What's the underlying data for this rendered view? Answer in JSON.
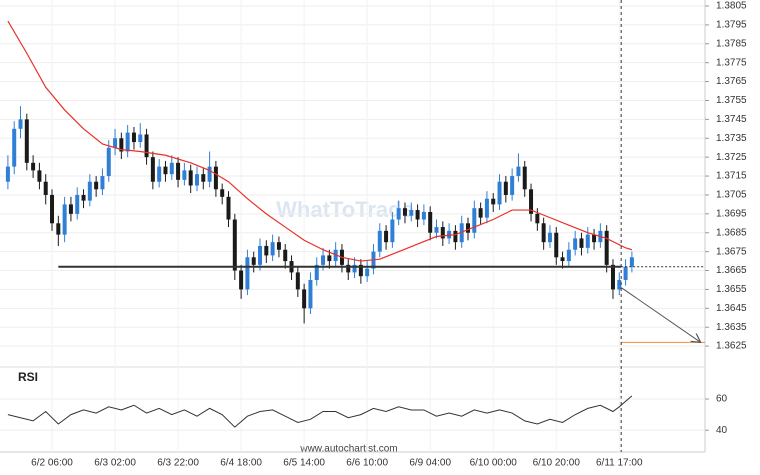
{
  "chart_data": [
    {
      "type": "candlestick",
      "watermark": "WhatToTrade",
      "categories": [
        null,
        null,
        null,
        null,
        null,
        null,
        null,
        "6/2 06:00",
        null,
        null,
        null,
        null,
        null,
        null,
        null,
        null,
        null,
        "6/3 02:00",
        null,
        null,
        null,
        null,
        null,
        null,
        null,
        null,
        null,
        "6/3 22:00",
        null,
        null,
        null,
        null,
        null,
        null,
        null,
        null,
        null,
        "6/4 18:00",
        null,
        null,
        null,
        null,
        null,
        null,
        null,
        null,
        null,
        "6/5 14:00",
        null,
        null,
        null,
        null,
        null,
        null,
        null,
        null,
        null,
        "6/6 10:00",
        null,
        null,
        null,
        null,
        null,
        null,
        null,
        null,
        null,
        "6/9 04:00",
        null,
        null,
        null,
        null,
        null,
        null,
        null,
        null,
        null,
        "6/10 00:00",
        null,
        null,
        null,
        null,
        null,
        null,
        null,
        null,
        null,
        "6/10 20:00",
        null,
        null,
        null,
        null,
        null,
        null,
        null,
        null,
        null,
        "6/11 17:00",
        null,
        null
      ],
      "candles": [
        [
          1.3712,
          1.3726,
          1.3708,
          1.372
        ],
        [
          1.372,
          1.3744,
          1.3716,
          1.374
        ],
        [
          1.374,
          1.3752,
          1.3735,
          1.3745
        ],
        [
          1.3745,
          1.3748,
          1.3718,
          1.3722
        ],
        [
          1.3722,
          1.3726,
          1.3714,
          1.3718
        ],
        [
          1.3718,
          1.3722,
          1.3708,
          1.3712
        ],
        [
          1.3712,
          1.3716,
          1.37,
          1.3705
        ],
        [
          1.3705,
          1.3708,
          1.3686,
          1.369
        ],
        [
          1.369,
          1.3694,
          1.3678,
          1.3684
        ],
        [
          1.3684,
          1.3704,
          1.368,
          1.37
        ],
        [
          1.37,
          1.3704,
          1.3691,
          1.3695
        ],
        [
          1.3695,
          1.3709,
          1.3692,
          1.3705
        ],
        [
          1.3705,
          1.3708,
          1.3698,
          1.3702
        ],
        [
          1.3702,
          1.3716,
          1.3699,
          1.3712
        ],
        [
          1.3712,
          1.3715,
          1.3704,
          1.3708
        ],
        [
          1.3708,
          1.3719,
          1.3705,
          1.3715
        ],
        [
          1.3715,
          1.3734,
          1.3712,
          1.373
        ],
        [
          1.373,
          1.374,
          1.3726,
          1.3735
        ],
        [
          1.3735,
          1.3738,
          1.3724,
          1.3728
        ],
        [
          1.3728,
          1.3742,
          1.3725,
          1.3738
        ],
        [
          1.3738,
          1.3741,
          1.3729,
          1.3733
        ],
        [
          1.3733,
          1.3743,
          1.373,
          1.3737
        ],
        [
          1.3737,
          1.374,
          1.3721,
          1.3725
        ],
        [
          1.3725,
          1.3728,
          1.3708,
          1.3712
        ],
        [
          1.3712,
          1.3724,
          1.3709,
          1.372
        ],
        [
          1.372,
          1.3723,
          1.3712,
          1.3716
        ],
        [
          1.3716,
          1.3726,
          1.3713,
          1.3722
        ],
        [
          1.3722,
          1.3725,
          1.3709,
          1.3713
        ],
        [
          1.3713,
          1.3722,
          1.371,
          1.3718
        ],
        [
          1.3718,
          1.3721,
          1.3706,
          1.371
        ],
        [
          1.371,
          1.372,
          1.3707,
          1.3716
        ],
        [
          1.3716,
          1.3719,
          1.3708,
          1.3712
        ],
        [
          1.3712,
          1.3728,
          1.3709,
          1.372
        ],
        [
          1.372,
          1.3723,
          1.3704,
          1.3708
        ],
        [
          1.3708,
          1.3711,
          1.37,
          1.3704
        ],
        [
          1.3704,
          1.3707,
          1.3688,
          1.3692
        ],
        [
          1.3692,
          1.3695,
          1.366,
          1.3665
        ],
        [
          1.3665,
          1.3668,
          1.365,
          1.3655
        ],
        [
          1.3655,
          1.3676,
          1.3652,
          1.3672
        ],
        [
          1.3672,
          1.3675,
          1.3664,
          1.3668
        ],
        [
          1.3668,
          1.3682,
          1.3665,
          1.3678
        ],
        [
          1.3678,
          1.3681,
          1.3669,
          1.3673
        ],
        [
          1.3673,
          1.3684,
          1.367,
          1.368
        ],
        [
          1.368,
          1.3683,
          1.3672,
          1.3676
        ],
        [
          1.3676,
          1.3679,
          1.3666,
          1.367
        ],
        [
          1.367,
          1.3673,
          1.366,
          1.3664
        ],
        [
          1.3664,
          1.3667,
          1.3651,
          1.3655
        ],
        [
          1.3655,
          1.3658,
          1.3637,
          1.3645
        ],
        [
          1.3645,
          1.3664,
          1.3642,
          1.366
        ],
        [
          1.366,
          1.3672,
          1.3657,
          1.3668
        ],
        [
          1.3668,
          1.3677,
          1.3665,
          1.3673
        ],
        [
          1.3673,
          1.3676,
          1.3666,
          1.367
        ],
        [
          1.367,
          1.368,
          1.3667,
          1.3676
        ],
        [
          1.3676,
          1.3679,
          1.3664,
          1.3668
        ],
        [
          1.3668,
          1.3671,
          1.366,
          1.3664
        ],
        [
          1.3664,
          1.3672,
          1.3661,
          1.3668
        ],
        [
          1.3668,
          1.3671,
          1.3658,
          1.3662
        ],
        [
          1.3662,
          1.367,
          1.3659,
          1.3666
        ],
        [
          1.3666,
          1.3679,
          1.3663,
          1.3675
        ],
        [
          1.3675,
          1.369,
          1.3672,
          1.3686
        ],
        [
          1.3686,
          1.3689,
          1.3676,
          1.368
        ],
        [
          1.368,
          1.3696,
          1.3677,
          1.3692
        ],
        [
          1.3692,
          1.3702,
          1.3689,
          1.3698
        ],
        [
          1.3698,
          1.3701,
          1.369,
          1.3694
        ],
        [
          1.3694,
          1.3701,
          1.3691,
          1.3697
        ],
        [
          1.3697,
          1.37,
          1.3688,
          1.3692
        ],
        [
          1.3692,
          1.37,
          1.3689,
          1.3696
        ],
        [
          1.3696,
          1.3699,
          1.3681,
          1.3685
        ],
        [
          1.3685,
          1.3692,
          1.3682,
          1.3688
        ],
        [
          1.3688,
          1.3691,
          1.3678,
          1.3682
        ],
        [
          1.3682,
          1.369,
          1.3679,
          1.3686
        ],
        [
          1.3686,
          1.3689,
          1.3676,
          1.368
        ],
        [
          1.368,
          1.3694,
          1.3677,
          1.369
        ],
        [
          1.369,
          1.3693,
          1.3681,
          1.3685
        ],
        [
          1.3685,
          1.3702,
          1.3682,
          1.3698
        ],
        [
          1.3698,
          1.3701,
          1.3689,
          1.3693
        ],
        [
          1.3693,
          1.3707,
          1.369,
          1.3703
        ],
        [
          1.3703,
          1.3706,
          1.3696,
          1.37
        ],
        [
          1.37,
          1.3716,
          1.3697,
          1.3712
        ],
        [
          1.3712,
          1.3715,
          1.3701,
          1.3705
        ],
        [
          1.3705,
          1.3719,
          1.3702,
          1.3715
        ],
        [
          1.3715,
          1.3727,
          1.3712,
          1.372
        ],
        [
          1.372,
          1.3723,
          1.3704,
          1.3708
        ],
        [
          1.3708,
          1.3711,
          1.3691,
          1.3695
        ],
        [
          1.3695,
          1.3698,
          1.3686,
          1.369
        ],
        [
          1.369,
          1.3693,
          1.3676,
          1.368
        ],
        [
          1.368,
          1.3689,
          1.3677,
          1.3685
        ],
        [
          1.3685,
          1.3688,
          1.3668,
          1.3672
        ],
        [
          1.3672,
          1.3675,
          1.3666,
          1.367
        ],
        [
          1.367,
          1.368,
          1.3667,
          1.3676
        ],
        [
          1.3676,
          1.3686,
          1.3673,
          1.3682
        ],
        [
          1.3682,
          1.3685,
          1.3673,
          1.3677
        ],
        [
          1.3677,
          1.3688,
          1.3674,
          1.3684
        ],
        [
          1.3684,
          1.3687,
          1.3676,
          1.368
        ],
        [
          1.368,
          1.369,
          1.3677,
          1.3686
        ],
        [
          1.3686,
          1.3689,
          1.3664,
          1.3668
        ],
        [
          1.3668,
          1.3671,
          1.365,
          1.3655
        ],
        [
          1.3655,
          1.3664,
          1.3652,
          1.366
        ],
        [
          1.366,
          1.3671,
          1.3657,
          1.3667
        ],
        [
          1.3667,
          1.3675,
          1.3664,
          1.3672
        ]
      ],
      "up_color": "#2f7fd6",
      "down_color": "#1a1a1a",
      "xlim": [
        -0.5,
        110.6
      ],
      "ylim": [
        1.3615,
        1.3805
      ],
      "yticks": [
        1.3625,
        1.3635,
        1.3645,
        1.3655,
        1.3665,
        1.3675,
        1.3685,
        1.3695,
        1.3705,
        1.3715,
        1.3725,
        1.3735,
        1.3745,
        1.3755,
        1.3765,
        1.3775,
        1.3785,
        1.3795,
        1.3805
      ],
      "grid": true,
      "moving_average": {
        "color": "#e8302a",
        "x": [
          0,
          3,
          6,
          9,
          12,
          15,
          18,
          21,
          25,
          29,
          32,
          35,
          38,
          41,
          44,
          47,
          50,
          53,
          56,
          59,
          62,
          65,
          68,
          71,
          74,
          77,
          80,
          83,
          86,
          89,
          92,
          95,
          98,
          99
        ],
        "values": [
          1.3797,
          1.378,
          1.3762,
          1.375,
          1.374,
          1.3732,
          1.3729,
          1.3728,
          1.3726,
          1.3722,
          1.3718,
          1.3712,
          1.3703,
          1.3695,
          1.3688,
          1.3681,
          1.3676,
          1.3672,
          1.367,
          1.3671,
          1.3675,
          1.3679,
          1.3683,
          1.3684,
          1.3688,
          1.3692,
          1.3697,
          1.3697,
          1.3693,
          1.3689,
          1.3685,
          1.3682,
          1.3677,
          1.3676
        ]
      },
      "support": {
        "x": [
          8,
          97.3
        ],
        "value": 1.3667,
        "color": "#333333"
      },
      "forecast": {
        "x": [
          97.3,
          109.9
        ],
        "values": [
          1.3656,
          1.3627
        ],
        "color": "#555555"
      },
      "target": {
        "x": [
          97.3,
          110.6
        ],
        "value": 1.3627,
        "color": "#f08c3a"
      },
      "current_x": 97.3
    },
    {
      "type": "line",
      "title": "RSI",
      "color": "#333333",
      "x": [
        0,
        2,
        4,
        6,
        8,
        10,
        12,
        14,
        16,
        18,
        20,
        22,
        24,
        26,
        28,
        30,
        32,
        34,
        36,
        38,
        40,
        42,
        44,
        46,
        48,
        50,
        52,
        54,
        56,
        58,
        60,
        62,
        64,
        66,
        68,
        70,
        72,
        74,
        76,
        78,
        80,
        82,
        84,
        86,
        88,
        90,
        92,
        94,
        96,
        97,
        99
      ],
      "values": [
        50,
        48,
        46,
        52,
        44,
        50,
        53,
        51,
        55,
        53,
        56,
        51,
        54,
        50,
        53,
        49,
        54,
        50,
        42,
        49,
        52,
        53,
        49,
        45,
        47,
        52,
        52,
        48,
        50,
        54,
        52,
        55,
        53,
        53,
        49,
        51,
        49,
        53,
        51,
        53,
        51,
        46,
        44,
        47,
        45,
        50,
        54,
        56,
        52,
        55,
        62
      ],
      "xlim": [
        -0.5,
        110.6
      ],
      "ylim": [
        28,
        76
      ],
      "yticks": [
        40,
        60
      ]
    }
  ],
  "footer": "www.autochartist.com"
}
